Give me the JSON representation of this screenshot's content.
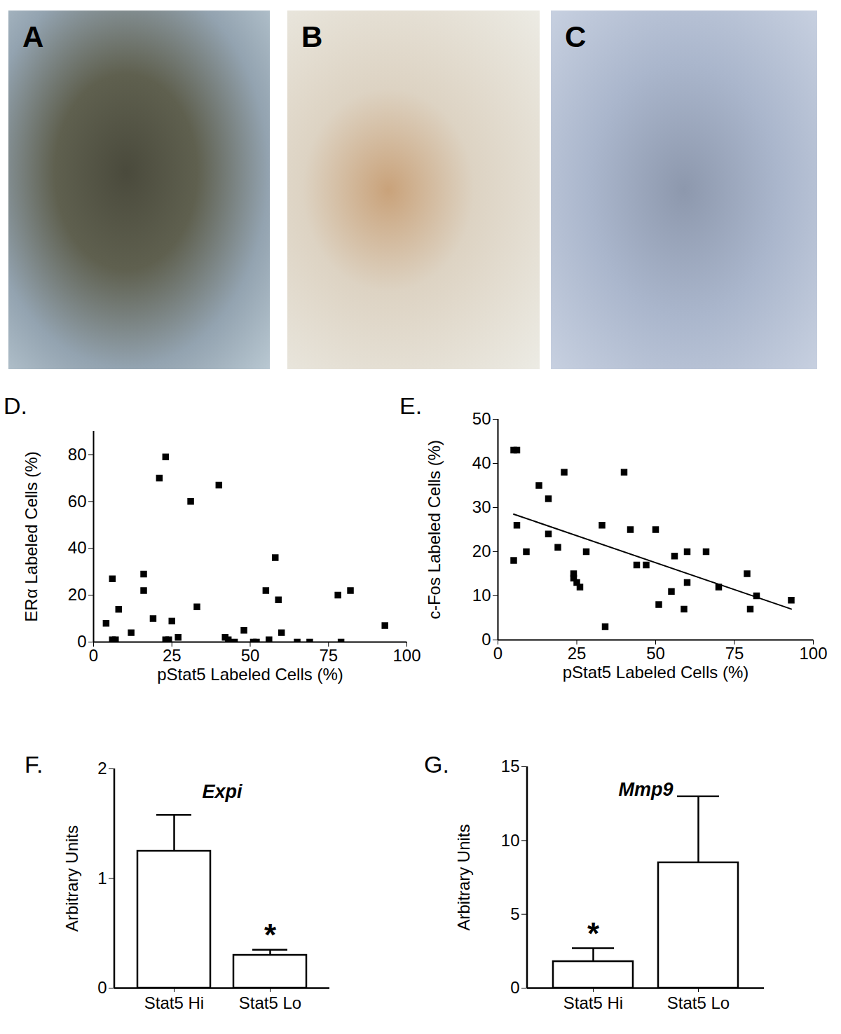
{
  "images": [
    {
      "label": "A"
    },
    {
      "label": "B"
    },
    {
      "label": "C"
    }
  ],
  "chart_data": [
    {
      "type": "scatter",
      "panel_label": "D.",
      "x_label": "pStat5 Labeled Cells (%)",
      "y_label": "ERα Labeled Cells (%)",
      "x": [
        4,
        6,
        6,
        7,
        8,
        12,
        16,
        16,
        19,
        21,
        23,
        23,
        24,
        25,
        27,
        31,
        33,
        40,
        42,
        43,
        45,
        48,
        51,
        52,
        55,
        56,
        58,
        59,
        60,
        65,
        69,
        78,
        79,
        82,
        93
      ],
      "values": [
        8,
        27,
        1,
        1,
        14,
        4,
        29,
        22,
        10,
        70,
        79,
        1,
        1,
        9,
        2,
        60,
        15,
        67,
        2,
        1,
        0,
        5,
        0,
        0,
        22,
        1,
        36,
        18,
        4,
        0,
        0,
        20,
        0,
        22,
        7
      ],
      "color": "#000000",
      "marker": "square",
      "xlim": [
        0,
        100
      ],
      "xticks": [
        0,
        25,
        50,
        75,
        100
      ],
      "ylim": [
        0,
        90
      ],
      "yticks": [
        0,
        20,
        40,
        60,
        80
      ]
    },
    {
      "type": "scatter",
      "panel_label": "E.",
      "x_label": "pStat5 Labeled Cells (%)",
      "y_label": "c-Fos Labeled Cells (%)",
      "x": [
        5,
        5,
        6,
        6,
        9,
        13,
        16,
        16,
        19,
        21,
        24,
        24,
        25,
        26,
        28,
        33,
        34,
        40,
        42,
        44,
        47,
        50,
        51,
        55,
        56,
        59,
        60,
        60,
        66,
        70,
        79,
        80,
        82,
        93
      ],
      "values": [
        18,
        43,
        26,
        43,
        20,
        35,
        32,
        24,
        21,
        38,
        14,
        15,
        13,
        12,
        20,
        26,
        3,
        38,
        25,
        17,
        17,
        25,
        8,
        11,
        19,
        7,
        20,
        13,
        20,
        12,
        15,
        7,
        10,
        9
      ],
      "color": "#000000",
      "marker": "square",
      "trend": {
        "type": "line",
        "color": "#000000",
        "x": [
          5,
          93
        ],
        "values": [
          28.5,
          7
        ]
      },
      "xlim": [
        0,
        100
      ],
      "xticks": [
        0,
        25,
        50,
        75,
        100
      ],
      "ylim": [
        0,
        50
      ],
      "yticks": [
        0,
        10,
        20,
        30,
        40,
        50
      ]
    },
    {
      "type": "bar",
      "panel_label": "F.",
      "title": "Expi",
      "y_label": "Arbitrary Units",
      "categories": [
        "Stat5 Hi",
        "Stat5 Lo"
      ],
      "values": [
        1.25,
        0.3
      ],
      "errors": [
        0.33,
        0.05
      ],
      "colors": [
        "#ffffff",
        "#000000"
      ],
      "annotations": [
        {
          "text": "*",
          "category": "Stat5 Lo"
        }
      ],
      "ylim": [
        0,
        2
      ],
      "yticks": [
        0,
        1,
        2
      ]
    },
    {
      "type": "bar",
      "panel_label": "G.",
      "title": "Mmp9",
      "y_label": "Arbitrary Units",
      "categories": [
        "Stat5 Hi",
        "Stat5 Lo"
      ],
      "values": [
        1.8,
        8.5
      ],
      "errors": [
        0.9,
        4.5
      ],
      "colors": [
        "#ffffff",
        "#000000"
      ],
      "annotations": [
        {
          "text": "*",
          "category": "Stat5 Hi"
        }
      ],
      "ylim": [
        0,
        15
      ],
      "yticks": [
        0,
        5,
        10,
        15
      ]
    }
  ]
}
